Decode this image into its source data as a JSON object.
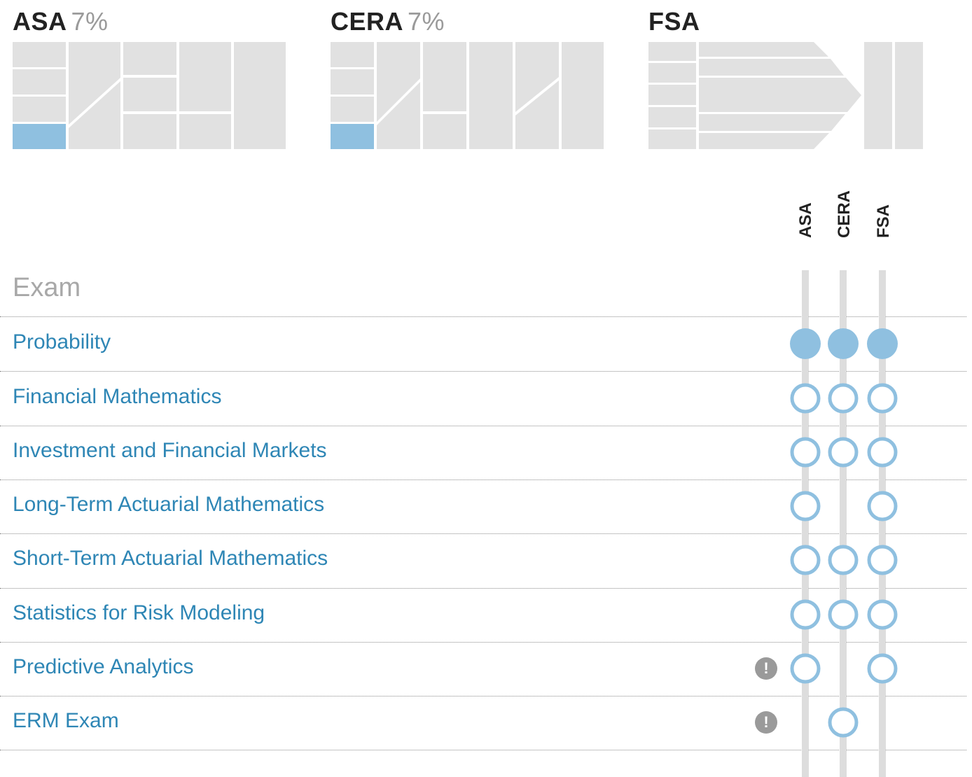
{
  "tracks": [
    {
      "id": "asa",
      "name": "ASA",
      "percent": "7%",
      "progress": 0.07
    },
    {
      "id": "cera",
      "name": "CERA",
      "percent": "7%",
      "progress": 0.07
    },
    {
      "id": "fsa",
      "name": "FSA",
      "percent": "",
      "progress": 0
    }
  ],
  "table": {
    "heading": "Exam",
    "columns": [
      "ASA",
      "CERA",
      "FSA"
    ],
    "rows": [
      {
        "name": "Probability",
        "warning": false,
        "marks": [
          "passed",
          "passed",
          "passed"
        ]
      },
      {
        "name": "Financial Mathematics",
        "warning": false,
        "marks": [
          "required",
          "required",
          "required"
        ]
      },
      {
        "name": "Investment and Financial Markets",
        "warning": false,
        "marks": [
          "required",
          "required",
          "required"
        ]
      },
      {
        "name": "Long-Term Actuarial Mathematics",
        "warning": false,
        "marks": [
          "required",
          "none",
          "required"
        ]
      },
      {
        "name": "Short-Term Actuarial Mathematics",
        "warning": false,
        "marks": [
          "required",
          "required",
          "required"
        ]
      },
      {
        "name": "Statistics for Risk Modeling",
        "warning": false,
        "marks": [
          "required",
          "required",
          "required"
        ]
      },
      {
        "name": "Predictive Analytics",
        "warning": true,
        "marks": [
          "required",
          "none",
          "required"
        ]
      },
      {
        "name": "ERM Exam",
        "warning": true,
        "marks": [
          "none",
          "required",
          "none"
        ]
      }
    ]
  },
  "icons": {
    "warning": "exclamation-circle-icon"
  },
  "colors": {
    "completed": "#8fc0e0",
    "block": "#e1e1e1",
    "track": "#dddddd",
    "ring": "#8fc0e0",
    "exam_text": "#2e86b5",
    "heading_text": "#a8a8a8",
    "percent_text": "#9a9a9a"
  }
}
